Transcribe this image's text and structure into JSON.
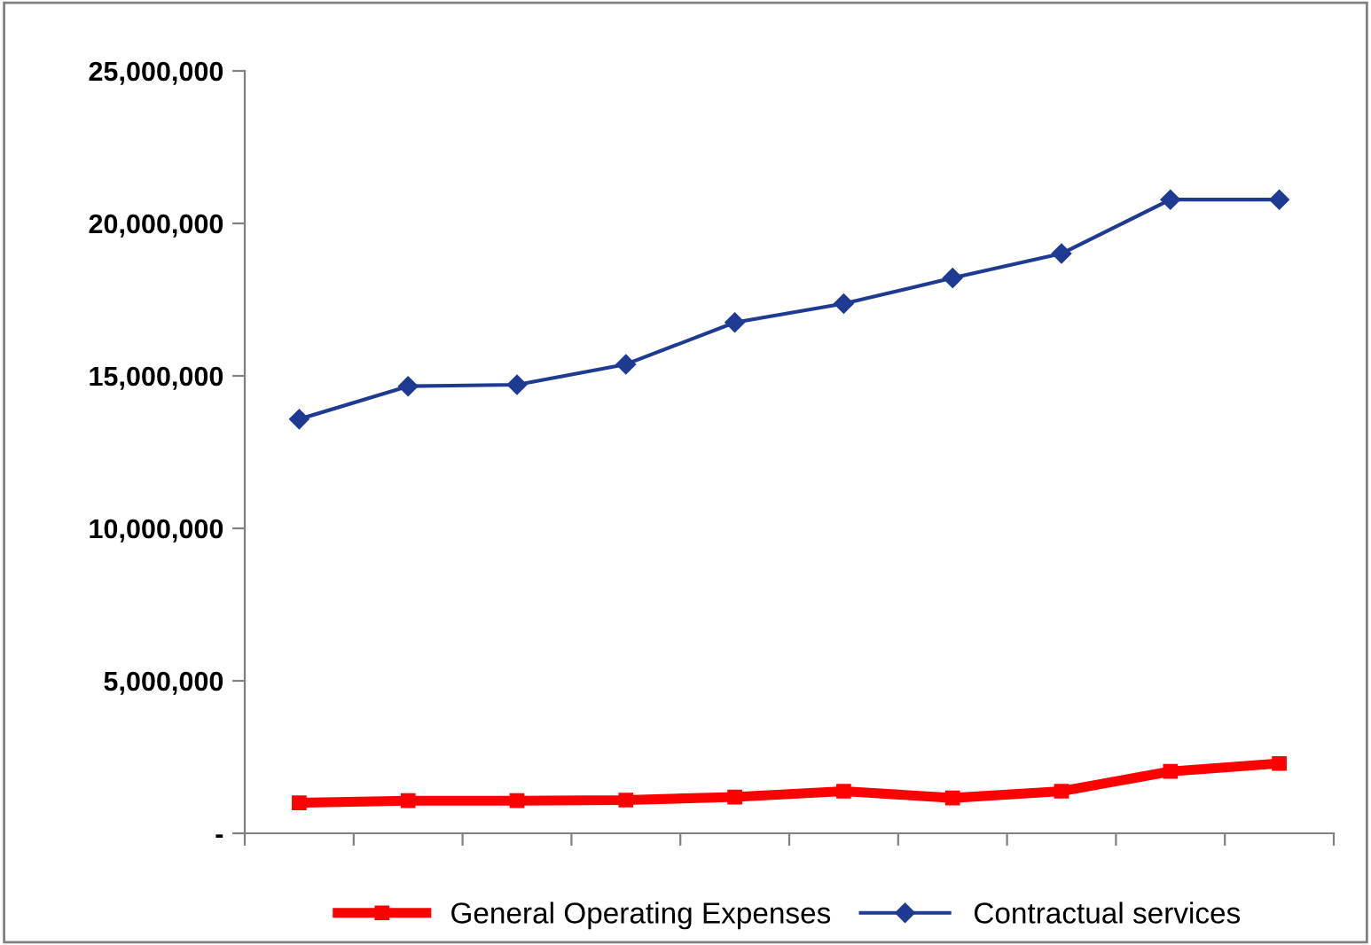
{
  "chart_data": {
    "type": "line",
    "categories": [
      null,
      null,
      null,
      null,
      null,
      null,
      null,
      null,
      null,
      null
    ],
    "series": [
      {
        "name": "General Operating Expenses",
        "color": "#ff0000",
        "marker": "square",
        "values": [
          1000000,
          1070000,
          1070000,
          1090000,
          1190000,
          1380000,
          1160000,
          1380000,
          2030000,
          2290000
        ]
      },
      {
        "name": "Contractual services",
        "color": "#1f3a93",
        "marker": "diamond",
        "values": [
          13580000,
          14660000,
          14710000,
          15380000,
          16750000,
          17370000,
          18210000,
          19010000,
          20780000,
          20780000
        ]
      }
    ],
    "ylim": [
      0,
      25000000
    ],
    "yticks": [
      {
        "value": 0,
        "label": "-"
      },
      {
        "value": 5000000,
        "label": "5,000,000"
      },
      {
        "value": 10000000,
        "label": "10,000,000"
      },
      {
        "value": 15000000,
        "label": "15,000,000"
      },
      {
        "value": 20000000,
        "label": "20,000,000"
      },
      {
        "value": 25000000,
        "label": "25,000,000"
      }
    ],
    "grid": false,
    "legend": "bottom",
    "line_style": "solid"
  }
}
